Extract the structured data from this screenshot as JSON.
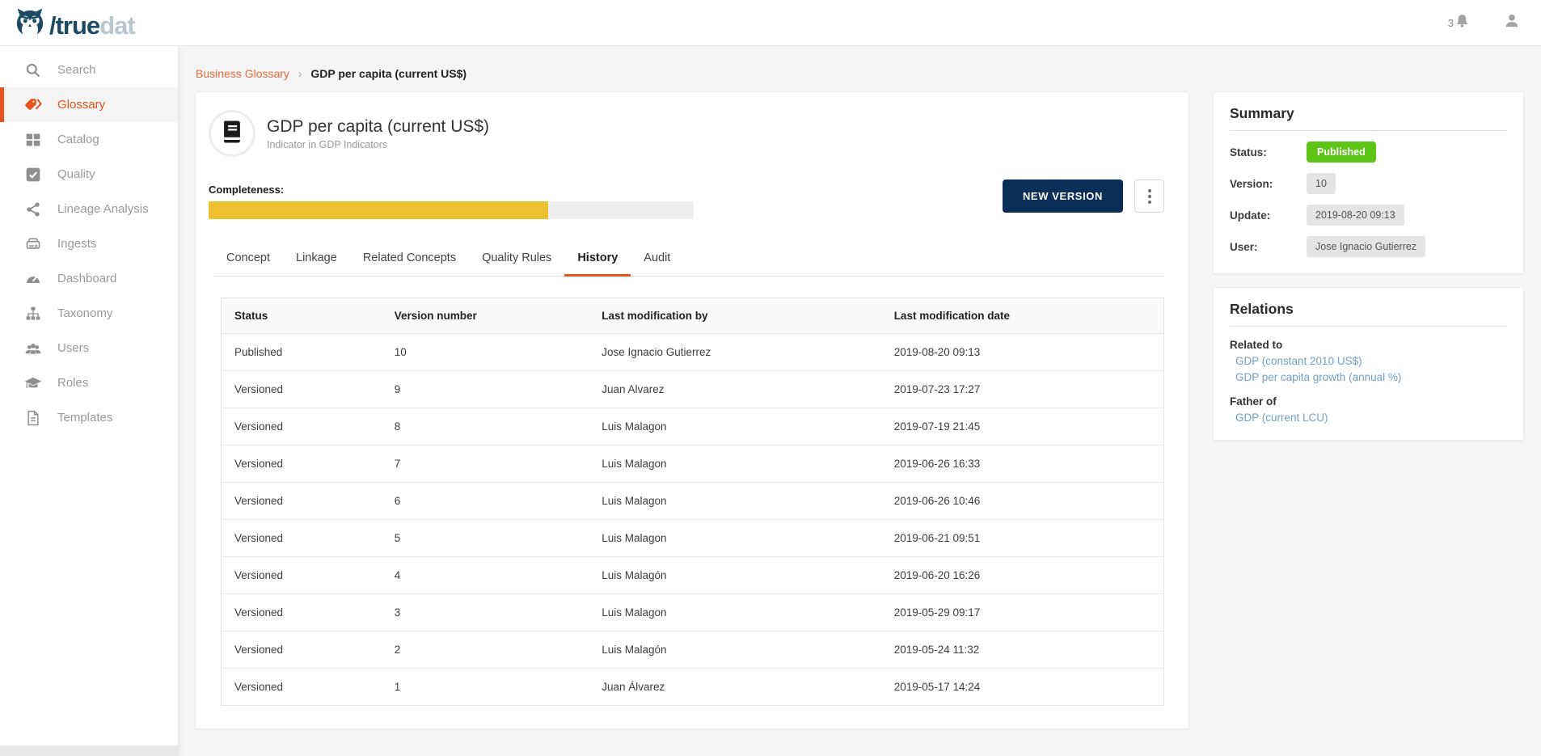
{
  "brand": {
    "logo_primary": "/true",
    "logo_secondary": "dat"
  },
  "topbar": {
    "notification_count": "3"
  },
  "sidebar": {
    "items": [
      {
        "label": "Search",
        "icon": "search-icon",
        "active": false
      },
      {
        "label": "Glossary",
        "icon": "tag-icon",
        "active": true
      },
      {
        "label": "Catalog",
        "icon": "grid-icon",
        "active": false
      },
      {
        "label": "Quality",
        "icon": "check-square-icon",
        "active": false
      },
      {
        "label": "Lineage Analysis",
        "icon": "share-icon",
        "active": false
      },
      {
        "label": "Ingests",
        "icon": "server-icon",
        "active": false
      },
      {
        "label": "Dashboard",
        "icon": "gauge-icon",
        "active": false
      },
      {
        "label": "Taxonomy",
        "icon": "sitemap-icon",
        "active": false
      },
      {
        "label": "Users",
        "icon": "users-icon",
        "active": false
      },
      {
        "label": "Roles",
        "icon": "graduation-cap-icon",
        "active": false
      },
      {
        "label": "Templates",
        "icon": "file-icon",
        "active": false
      }
    ]
  },
  "breadcrumb": {
    "link": "Business Glossary",
    "separator": "›",
    "current": "GDP per capita (current US$)"
  },
  "concept": {
    "title": "GDP per capita (current US$)",
    "subtitle": "Indicator in GDP Indicators",
    "completeness_label": "Completeness:",
    "completeness_percent": 70
  },
  "actions": {
    "new_version_label": "NEW VERSION"
  },
  "tabs": [
    {
      "label": "Concept",
      "active": false
    },
    {
      "label": "Linkage",
      "active": false
    },
    {
      "label": "Related Concepts",
      "active": false
    },
    {
      "label": "Quality Rules",
      "active": false
    },
    {
      "label": "History",
      "active": true
    },
    {
      "label": "Audit",
      "active": false
    }
  ],
  "history_table": {
    "columns": [
      "Status",
      "Version number",
      "Last modification by",
      "Last modification date"
    ],
    "rows": [
      {
        "status": "Published",
        "version": "10",
        "by": "Jose Ignacio Gutierrez",
        "date": "2019-08-20 09:13"
      },
      {
        "status": "Versioned",
        "version": "9",
        "by": "Juan Alvarez",
        "date": "2019-07-23 17:27"
      },
      {
        "status": "Versioned",
        "version": "8",
        "by": "Luis Malagon",
        "date": "2019-07-19 21:45"
      },
      {
        "status": "Versioned",
        "version": "7",
        "by": "Luis Malagon",
        "date": "2019-06-26 16:33"
      },
      {
        "status": "Versioned",
        "version": "6",
        "by": "Luis Malagon",
        "date": "2019-06-26 10:46"
      },
      {
        "status": "Versioned",
        "version": "5",
        "by": "Luis Malagon",
        "date": "2019-06-21 09:51"
      },
      {
        "status": "Versioned",
        "version": "4",
        "by": "Luis Malagón",
        "date": "2019-06-20 16:26"
      },
      {
        "status": "Versioned",
        "version": "3",
        "by": "Luis Malagon",
        "date": "2019-05-29 09:17"
      },
      {
        "status": "Versioned",
        "version": "2",
        "by": "Luis Malagón",
        "date": "2019-05-24 11:32"
      },
      {
        "status": "Versioned",
        "version": "1",
        "by": "Juan Álvarez",
        "date": "2019-05-17 14:24"
      }
    ]
  },
  "summary": {
    "title": "Summary",
    "status_label": "Status:",
    "status_value": "Published",
    "version_label": "Version:",
    "version_value": "10",
    "update_label": "Update:",
    "update_value": "2019-08-20 09:13",
    "user_label": "User:",
    "user_value": "Jose Ignacio Gutierrez"
  },
  "relations": {
    "title": "Relations",
    "related_to_label": "Related to",
    "related_to_links": [
      "GDP (constant 2010 US$)",
      "GDP per capita growth (annual %)"
    ],
    "father_of_label": "Father of",
    "father_of_links": [
      "GDP (current LCU)"
    ]
  },
  "colors": {
    "brand_orange": "#e8521d",
    "breadcrumb_link": "#e56a3d",
    "completeness_fill": "#ecc030",
    "new_version_bg": "#0b2e59",
    "published_badge": "#5ec418",
    "relation_link": "#6fa0ca",
    "logo_primary": "#1c4a63",
    "logo_secondary": "#b9c6ce"
  }
}
